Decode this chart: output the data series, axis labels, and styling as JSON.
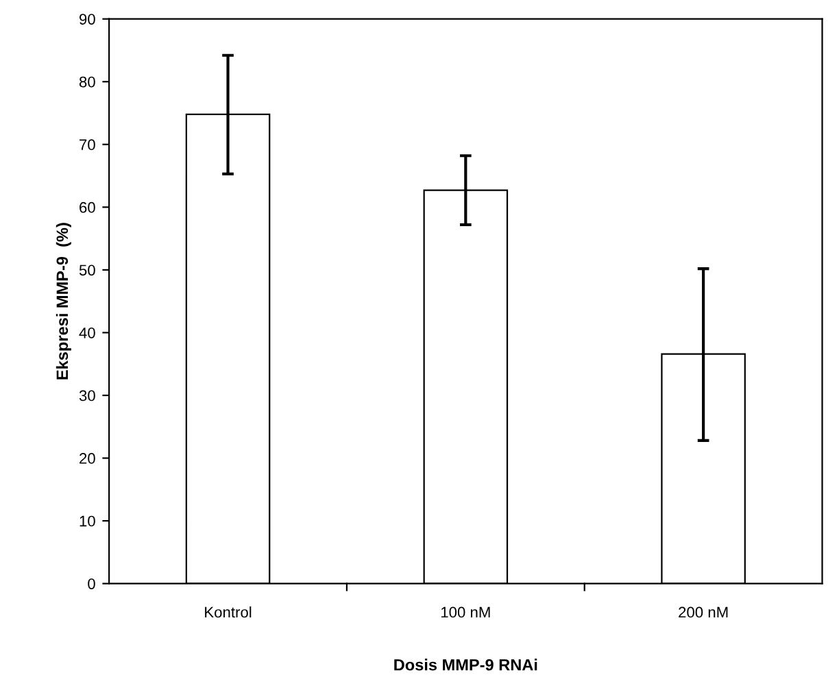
{
  "chart_data": {
    "type": "bar",
    "xlabel": "Dosis MMP-9 RNAi",
    "ylabel": "Ekspresi MMP-9  (%)",
    "categories": [
      "Kontrol",
      "100 nM",
      "200 nM"
    ],
    "values": [
      74.8,
      62.7,
      36.6
    ],
    "errors": [
      [
        65.3,
        84.2
      ],
      [
        57.2,
        68.2
      ],
      [
        22.8,
        50.2
      ]
    ],
    "color": "#ffffff",
    "ylim": [
      0,
      90
    ],
    "yticks": [
      0,
      10,
      20,
      30,
      40,
      50,
      60,
      70,
      80,
      90
    ],
    "grid": false
  }
}
